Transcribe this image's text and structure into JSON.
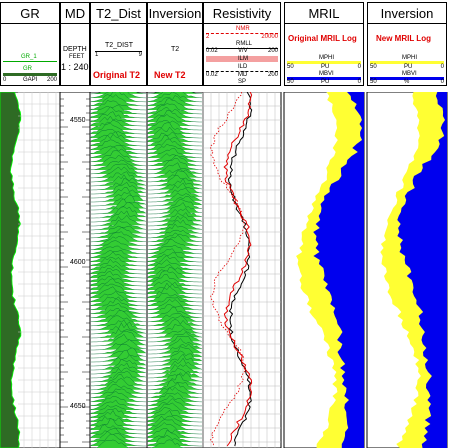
{
  "columns": {
    "gr": "GR",
    "md": "MD",
    "t2dist": "T2_Dist",
    "inversion1": "Inversion",
    "resistivity": "Resistivity",
    "mril": "MRIL",
    "inversion2": "Inversion"
  },
  "gr_header": {
    "curve1": "GR_1",
    "curve2": "GR",
    "scale_left": "0",
    "unit": "GAPI",
    "scale_right": "200"
  },
  "md_header": {
    "label": "DEPTH",
    "unit": "FEET",
    "scale": "1 : 240"
  },
  "t2_header": {
    "curve": "T2_DIST",
    "min": "1",
    "max": "9",
    "note": "Original T2"
  },
  "inv_header": {
    "curve": "T2",
    "note": "New T2"
  },
  "res_header": {
    "top_curve": "NMR",
    "top_left": "2",
    "top_right": "20000",
    "rmll": "RMLL",
    "rmll_left": "0.02",
    "rmll_unit": "V/V",
    "rmll_right": "200",
    "ild": "ILD",
    "ild_left": "0.02",
    "ild_unit": "MD",
    "ild_right": "200",
    "ilm": "ILM",
    "sp": "SP"
  },
  "mril_header": {
    "title": "Original MRIL Log",
    "c1": "MPHI",
    "c1_left": "50",
    "c1_unit": "PU",
    "c1_right": "0",
    "c2": "MBVI",
    "c2_left": "50",
    "c2_unit": "PU",
    "c2_right": "0"
  },
  "inv2_header": {
    "title": "New MRIL Log",
    "c1": "MPHI",
    "c1_left": "50",
    "c1_unit": "PU",
    "c1_right": "0",
    "c2": "MBVI",
    "c2_left": "50",
    "c2_unit": "%",
    "c2_right": "0"
  },
  "depth_labels": [
    "4550",
    "4600",
    "4650"
  ],
  "colors": {
    "gr_fill": "#2e6b24",
    "t2_green": "#33cc33",
    "mril_yellow": "#ffff33",
    "mril_blue": "#0000ee",
    "red": "#e00000"
  }
}
